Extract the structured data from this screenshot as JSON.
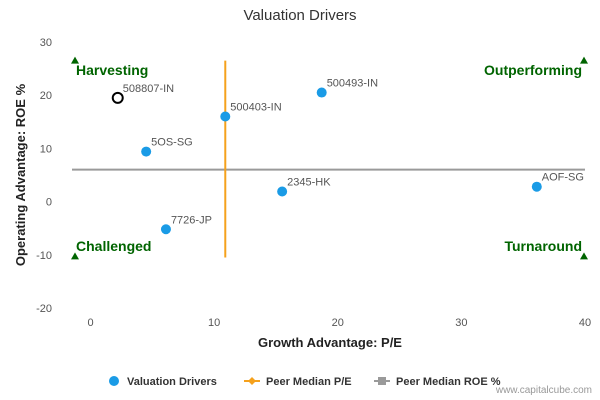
{
  "chart_data": {
    "type": "scatter",
    "title": "Valuation Drivers",
    "xlabel": "Growth Advantage: P/E",
    "ylabel": "Operating Advantage: ROE %",
    "xlim": [
      -1.5,
      40
    ],
    "ylim": [
      -20,
      30
    ],
    "x_ticks": [
      0,
      10,
      20,
      30,
      40
    ],
    "y_ticks": [
      -20,
      -10,
      0,
      10,
      20,
      30
    ],
    "grid": false,
    "series": [
      {
        "name": "Valuation Drivers",
        "color": "#1a9be6",
        "points": [
          {
            "label": "508807-IN",
            "x": 2.2,
            "y": 19.5,
            "highlight": true
          },
          {
            "label": "500403-IN",
            "x": 10.9,
            "y": 16.0
          },
          {
            "label": "500493-IN",
            "x": 18.7,
            "y": 20.5
          },
          {
            "label": "5OS-SG",
            "x": 4.5,
            "y": 9.4
          },
          {
            "label": "2345-HK",
            "x": 15.5,
            "y": 1.9
          },
          {
            "label": "AOF-SG",
            "x": 36.1,
            "y": 2.8
          },
          {
            "label": "7726-JP",
            "x": 6.1,
            "y": -5.2
          }
        ]
      },
      {
        "name": "Peer Median P/E",
        "color": "#f5a11c",
        "x": 10.9,
        "y_range": [
          -10.5,
          26.5
        ]
      },
      {
        "name": "Peer Median ROE %",
        "color": "#9a9a9a",
        "y": 6.0,
        "x_range": [
          -1.5,
          40
        ]
      }
    ],
    "quadrants": [
      {
        "label": "Harvesting",
        "corner": "top-left"
      },
      {
        "label": "Outperforming",
        "corner": "top-right"
      },
      {
        "label": "Challenged",
        "corner": "bottom-left"
      },
      {
        "label": "Turnaround",
        "corner": "bottom-right"
      }
    ],
    "quadrant_color": "#006400",
    "legend_position": "bottom-center"
  },
  "credit": "www.capitalcube.com"
}
